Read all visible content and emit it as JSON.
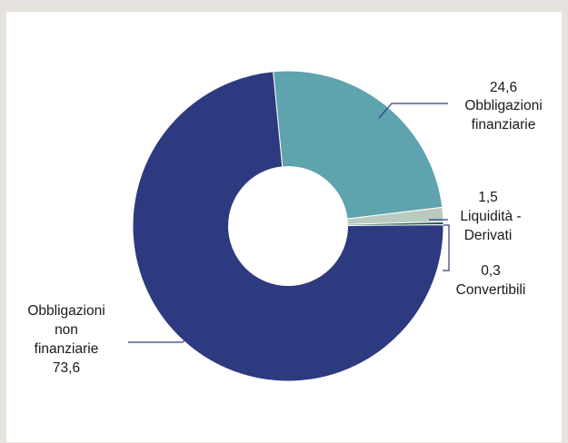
{
  "chart_data": {
    "type": "pie",
    "variant": "donut",
    "title": "",
    "start_angle_deg": -5.5,
    "direction": "clockwise",
    "slices": [
      {
        "key": "obbl-fin",
        "label_lines": [
          "Obbligazioni",
          "finanziarie"
        ],
        "value_text": "24,6",
        "value": 24.6,
        "color": "#5ea3ae"
      },
      {
        "key": "liquidita",
        "label_lines": [
          "Liquidità -",
          "Derivati"
        ],
        "value_text": "1,5",
        "value": 1.5,
        "color": "#b9cbbe"
      },
      {
        "key": "convert",
        "label_lines": [
          "Convertibili"
        ],
        "value_text": "0,3",
        "value": 0.3,
        "color": "#1f5d52"
      },
      {
        "key": "obbl-nonfin",
        "label_lines": [
          "Obbligazioni",
          "non",
          "finanziarie"
        ],
        "value_text": "73,6",
        "value": 73.6,
        "color": "#2e3a7f"
      }
    ],
    "leader_line_color": "#2e3a7f",
    "legend": "none"
  }
}
